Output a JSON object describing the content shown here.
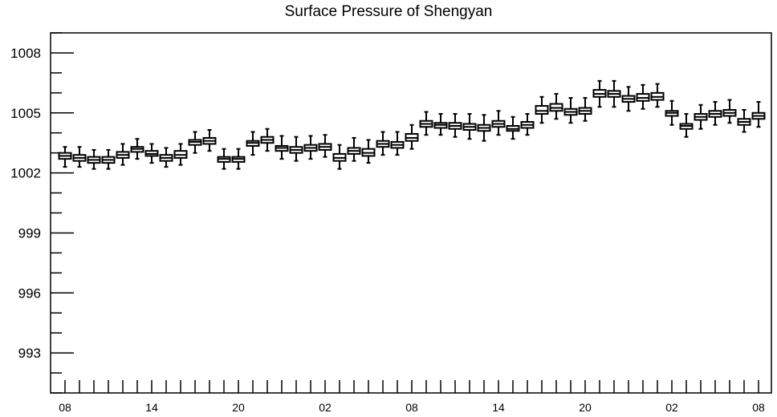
{
  "chart_data": {
    "type": "box",
    "title": "Surface Pressure of Shengyan",
    "xlabel": "",
    "ylabel": "",
    "ylim": [
      991.0,
      1009.0
    ],
    "y_ticks": [
      993,
      996,
      999,
      1002,
      1005,
      1008
    ],
    "x_tick_labels": [
      "08",
      "14",
      "20",
      "02",
      "08",
      "14",
      "20",
      "02",
      "08"
    ],
    "x_tick_label_hours": [
      0,
      6,
      12,
      18,
      24,
      30,
      36,
      42,
      48
    ],
    "grid": false,
    "boxes": [
      {
        "hour": 0,
        "whisker_low": 1002.3,
        "q1": 1002.7,
        "median": 1002.85,
        "q3": 1003.0,
        "whisker_high": 1003.3
      },
      {
        "hour": 1,
        "whisker_low": 1002.3,
        "q1": 1002.6,
        "median": 1002.75,
        "q3": 1002.9,
        "whisker_high": 1003.3
      },
      {
        "hour": 2,
        "whisker_low": 1002.2,
        "q1": 1002.5,
        "median": 1002.65,
        "q3": 1002.8,
        "whisker_high": 1003.15
      },
      {
        "hour": 3,
        "whisker_low": 1002.2,
        "q1": 1002.5,
        "median": 1002.65,
        "q3": 1002.8,
        "whisker_high": 1003.15
      },
      {
        "hour": 4,
        "whisker_low": 1002.4,
        "q1": 1002.75,
        "median": 1002.9,
        "q3": 1003.05,
        "whisker_high": 1003.45
      },
      {
        "hour": 5,
        "whisker_low": 1002.7,
        "q1": 1003.05,
        "median": 1003.2,
        "q3": 1003.3,
        "whisker_high": 1003.7
      },
      {
        "hour": 6,
        "whisker_low": 1002.5,
        "q1": 1002.85,
        "median": 1002.95,
        "q3": 1003.1,
        "whisker_high": 1003.45
      },
      {
        "hour": 7,
        "whisker_low": 1002.3,
        "q1": 1002.6,
        "median": 1002.75,
        "q3": 1002.9,
        "whisker_high": 1003.25
      },
      {
        "hour": 8,
        "whisker_low": 1002.4,
        "q1": 1002.75,
        "median": 1002.9,
        "q3": 1003.1,
        "whisker_high": 1003.45
      },
      {
        "hour": 9,
        "whisker_low": 1003.0,
        "q1": 1003.4,
        "median": 1003.55,
        "q3": 1003.65,
        "whisker_high": 1004.05
      },
      {
        "hour": 10,
        "whisker_low": 1003.1,
        "q1": 1003.45,
        "median": 1003.6,
        "q3": 1003.75,
        "whisker_high": 1004.15
      },
      {
        "hour": 11,
        "whisker_low": 1002.2,
        "q1": 1002.55,
        "median": 1002.7,
        "q3": 1002.8,
        "whisker_high": 1003.2
      },
      {
        "hour": 12,
        "whisker_low": 1002.2,
        "q1": 1002.55,
        "median": 1002.7,
        "q3": 1002.8,
        "whisker_high": 1003.2
      },
      {
        "hour": 13,
        "whisker_low": 1002.9,
        "q1": 1003.35,
        "median": 1003.5,
        "q3": 1003.6,
        "whisker_high": 1004.05
      },
      {
        "hour": 14,
        "whisker_low": 1003.1,
        "q1": 1003.5,
        "median": 1003.65,
        "q3": 1003.8,
        "whisker_high": 1004.2
      },
      {
        "hour": 15,
        "whisker_low": 1002.7,
        "q1": 1003.1,
        "median": 1003.25,
        "q3": 1003.35,
        "whisker_high": 1003.85
      },
      {
        "hour": 16,
        "whisker_low": 1002.6,
        "q1": 1003.0,
        "median": 1003.15,
        "q3": 1003.3,
        "whisker_high": 1003.8
      },
      {
        "hour": 17,
        "whisker_low": 1002.7,
        "q1": 1003.1,
        "median": 1003.25,
        "q3": 1003.4,
        "whisker_high": 1003.85
      },
      {
        "hour": 18,
        "whisker_low": 1002.8,
        "q1": 1003.15,
        "median": 1003.3,
        "q3": 1003.45,
        "whisker_high": 1003.9
      },
      {
        "hour": 19,
        "whisker_low": 1002.2,
        "q1": 1002.6,
        "median": 1002.75,
        "q3": 1002.95,
        "whisker_high": 1003.4
      },
      {
        "hour": 20,
        "whisker_low": 1002.6,
        "q1": 1002.95,
        "median": 1003.1,
        "q3": 1003.25,
        "whisker_high": 1003.75
      },
      {
        "hour": 21,
        "whisker_low": 1002.5,
        "q1": 1002.85,
        "median": 1003.0,
        "q3": 1003.2,
        "whisker_high": 1003.65
      },
      {
        "hour": 22,
        "whisker_low": 1002.9,
        "q1": 1003.3,
        "median": 1003.45,
        "q3": 1003.6,
        "whisker_high": 1004.05
      },
      {
        "hour": 23,
        "whisker_low": 1002.9,
        "q1": 1003.25,
        "median": 1003.4,
        "q3": 1003.55,
        "whisker_high": 1004.05
      },
      {
        "hour": 24,
        "whisker_low": 1003.2,
        "q1": 1003.6,
        "median": 1003.75,
        "q3": 1003.95,
        "whisker_high": 1004.4
      },
      {
        "hour": 25,
        "whisker_low": 1003.9,
        "q1": 1004.3,
        "median": 1004.45,
        "q3": 1004.6,
        "whisker_high": 1005.05
      },
      {
        "hour": 26,
        "whisker_low": 1003.9,
        "q1": 1004.25,
        "median": 1004.4,
        "q3": 1004.5,
        "whisker_high": 1004.95
      },
      {
        "hour": 27,
        "whisker_low": 1003.8,
        "q1": 1004.2,
        "median": 1004.35,
        "q3": 1004.5,
        "whisker_high": 1004.95
      },
      {
        "hour": 28,
        "whisker_low": 1003.7,
        "q1": 1004.15,
        "median": 1004.3,
        "q3": 1004.45,
        "whisker_high": 1004.95
      },
      {
        "hour": 29,
        "whisker_low": 1003.6,
        "q1": 1004.1,
        "median": 1004.25,
        "q3": 1004.4,
        "whisker_high": 1004.9
      },
      {
        "hour": 30,
        "whisker_low": 1003.9,
        "q1": 1004.3,
        "median": 1004.45,
        "q3": 1004.6,
        "whisker_high": 1005.1
      },
      {
        "hour": 31,
        "whisker_low": 1003.7,
        "q1": 1004.1,
        "median": 1004.2,
        "q3": 1004.35,
        "whisker_high": 1004.8
      },
      {
        "hour": 32,
        "whisker_low": 1003.9,
        "q1": 1004.25,
        "median": 1004.4,
        "q3": 1004.55,
        "whisker_high": 1004.95
      },
      {
        "hour": 33,
        "whisker_low": 1004.5,
        "q1": 1004.95,
        "median": 1005.1,
        "q3": 1005.35,
        "whisker_high": 1005.8
      },
      {
        "hour": 34,
        "whisker_low": 1004.7,
        "q1": 1005.1,
        "median": 1005.25,
        "q3": 1005.45,
        "whisker_high": 1005.95
      },
      {
        "hour": 35,
        "whisker_low": 1004.5,
        "q1": 1004.9,
        "median": 1005.05,
        "q3": 1005.2,
        "whisker_high": 1005.75
      },
      {
        "hour": 36,
        "whisker_low": 1004.6,
        "q1": 1004.95,
        "median": 1005.1,
        "q3": 1005.25,
        "whisker_high": 1005.75
      },
      {
        "hour": 37,
        "whisker_low": 1005.3,
        "q1": 1005.8,
        "median": 1005.95,
        "q3": 1006.15,
        "whisker_high": 1006.6
      },
      {
        "hour": 38,
        "whisker_low": 1005.3,
        "q1": 1005.8,
        "median": 1005.95,
        "q3": 1006.1,
        "whisker_high": 1006.6
      },
      {
        "hour": 39,
        "whisker_low": 1005.1,
        "q1": 1005.55,
        "median": 1005.7,
        "q3": 1005.85,
        "whisker_high": 1006.3
      },
      {
        "hour": 40,
        "whisker_low": 1005.2,
        "q1": 1005.6,
        "median": 1005.75,
        "q3": 1005.95,
        "whisker_high": 1006.4
      },
      {
        "hour": 41,
        "whisker_low": 1005.3,
        "q1": 1005.65,
        "median": 1005.8,
        "q3": 1006.0,
        "whisker_high": 1006.45
      },
      {
        "hour": 42,
        "whisker_low": 1004.4,
        "q1": 1004.85,
        "median": 1005.0,
        "q3": 1005.1,
        "whisker_high": 1005.6
      },
      {
        "hour": 43,
        "whisker_low": 1003.8,
        "q1": 1004.2,
        "median": 1004.35,
        "q3": 1004.45,
        "whisker_high": 1004.95
      },
      {
        "hour": 44,
        "whisker_low": 1004.2,
        "q1": 1004.65,
        "median": 1004.8,
        "q3": 1004.95,
        "whisker_high": 1005.4
      },
      {
        "hour": 45,
        "whisker_low": 1004.4,
        "q1": 1004.8,
        "median": 1004.95,
        "q3": 1005.1,
        "whisker_high": 1005.55
      },
      {
        "hour": 46,
        "whisker_low": 1004.5,
        "q1": 1004.85,
        "median": 1005.0,
        "q3": 1005.15,
        "whisker_high": 1005.65
      },
      {
        "hour": 47,
        "whisker_low": 1004.05,
        "q1": 1004.4,
        "median": 1004.55,
        "q3": 1004.7,
        "whisker_high": 1005.15
      },
      {
        "hour": 48,
        "whisker_low": 1004.3,
        "q1": 1004.7,
        "median": 1004.85,
        "q3": 1005.0,
        "whisker_high": 1005.55
      }
    ]
  }
}
